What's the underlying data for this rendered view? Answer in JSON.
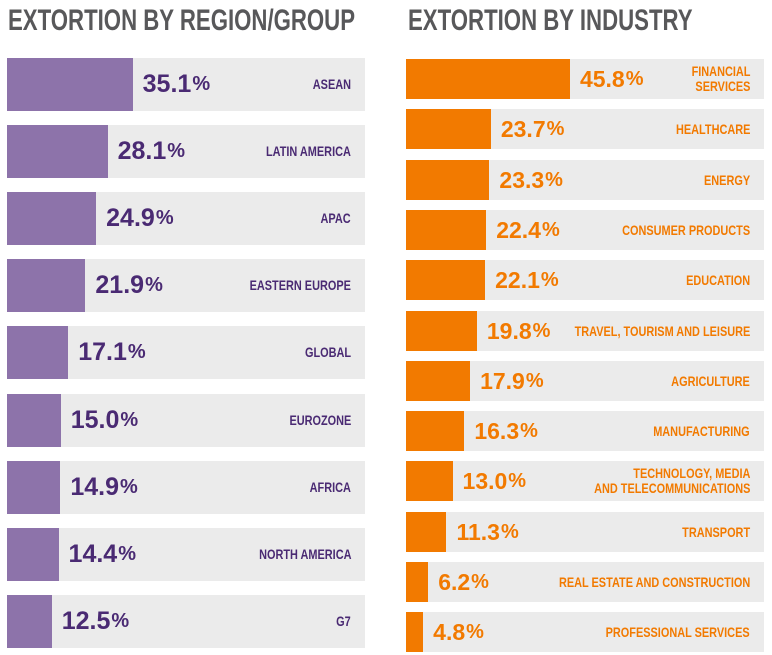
{
  "chart_data": [
    {
      "type": "bar",
      "orientation": "horizontal",
      "title": "EXTORTION BY REGION/GROUP",
      "value_suffix": "%",
      "xlim": [
        0,
        100
      ],
      "color": "#8d73aa",
      "label_color": "#4a2a73",
      "categories": [
        "ASEAN",
        "LATIN AMERICA",
        "APAC",
        "EASTERN EUROPE",
        "GLOBAL",
        "EUROZONE",
        "AFRICA",
        "NORTH AMERICA",
        "G7"
      ],
      "values": [
        35.1,
        28.1,
        24.9,
        21.9,
        17.1,
        15.0,
        14.9,
        14.4,
        12.5
      ]
    },
    {
      "type": "bar",
      "orientation": "horizontal",
      "title": "EXTORTION BY INDUSTRY",
      "value_suffix": "%",
      "xlim": [
        0,
        100
      ],
      "color": "#f27a00",
      "label_color": "#f27a00",
      "categories": [
        "FINANCIAL\nSERVICES",
        "HEALTHCARE",
        "ENERGY",
        "CONSUMER PRODUCTS",
        "EDUCATION",
        "TRAVEL, TOURISM AND LEISURE",
        "AGRICULTURE",
        "MANUFACTURING",
        "TECHNOLOGY, MEDIA\nAND TELECOMMUNICATIONS",
        "TRANSPORT",
        "REAL ESTATE AND CONSTRUCTION",
        "PROFESSIONAL SERVICES"
      ],
      "values": [
        45.8,
        23.7,
        23.3,
        22.4,
        22.1,
        19.8,
        17.9,
        16.3,
        13.0,
        11.3,
        6.2,
        4.8
      ]
    }
  ]
}
